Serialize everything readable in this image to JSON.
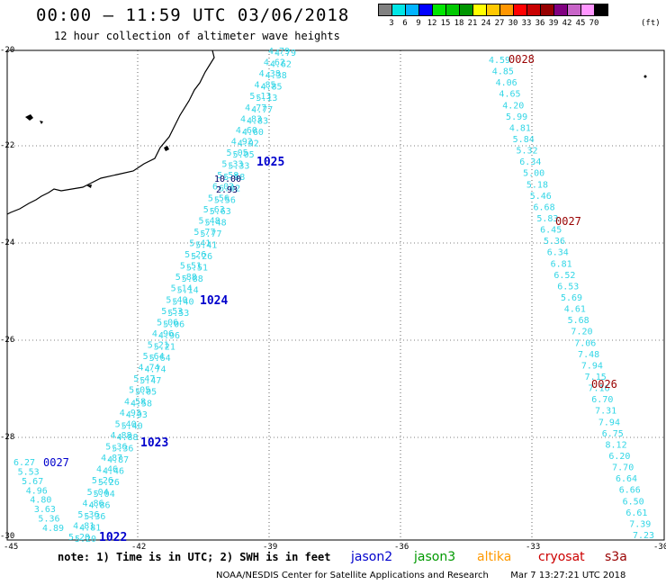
{
  "header": {
    "title": "00:00 – 11:59 UTC 03/06/2018",
    "subtitle": "12 hour collection of altimeter wave heights"
  },
  "color_scale": {
    "colors": [
      "#808080",
      "#00e6e6",
      "#00b4ff",
      "#0000ff",
      "#00e600",
      "#00c800",
      "#009600",
      "#ffff00",
      "#ffc800",
      "#ff9600",
      "#ff0000",
      "#c80000",
      "#960000",
      "#800080",
      "#c864c8",
      "#ff96ff",
      "#000000"
    ],
    "labels": [
      "3",
      "6",
      "9",
      "12",
      "15",
      "18",
      "21",
      "24",
      "27",
      "30",
      "33",
      "36",
      "39",
      "42",
      "45",
      "70"
    ],
    "unit": "(ft)"
  },
  "map": {
    "lat_labels": [
      "-20",
      "-22",
      "-24",
      "-26",
      "-28",
      "-30"
    ],
    "lon_labels": [
      "-45",
      "-42",
      "-39",
      "-36",
      "-33",
      "-30"
    ],
    "labels": [
      {
        "text": "1025",
        "color": "#0000cc"
      },
      {
        "text": "1024",
        "color": "#0000cc"
      },
      {
        "text": "1023",
        "color": "#0000cc"
      },
      {
        "text": "1022",
        "color": "#0000cc"
      },
      {
        "text": "0027",
        "color": "#0000cc"
      },
      {
        "text": "0028",
        "color": "#990000"
      },
      {
        "text": "0027",
        "color": "#990000"
      },
      {
        "text": "0026",
        "color": "#990000"
      },
      {
        "text": "10.00",
        "color": "#000066"
      },
      {
        "text": "2.93",
        "color": "#000066"
      }
    ],
    "track_east_values": [
      "4.59",
      "4.85",
      "4.06",
      "4.65",
      "4.20",
      "5.99",
      "4.81",
      "5.84",
      "5.32",
      "6.34",
      "5.00",
      "5.18",
      "5.46",
      "6.68",
      "5.83",
      "6.45",
      "5.36",
      "6.34",
      "6.81",
      "6.52",
      "6.53",
      "5.69",
      "4.61",
      "5.68",
      "7.20",
      "7.06",
      "7.48",
      "7.94",
      "7.15",
      "7.16",
      "6.70",
      "7.31",
      "7.94",
      "6.75",
      "8.12",
      "6.20",
      "7.70",
      "6.64",
      "6.66",
      "6.50",
      "6.61",
      "7.39",
      "7.23"
    ],
    "track_west_values": [
      "6.27",
      "5.53",
      "5.67",
      "4.96",
      "4.80",
      "3.63",
      "5.36",
      "4.89"
    ],
    "track_main_values": [
      "4.79",
      "4.62",
      "4.38",
      "4.85",
      "5.13",
      "4.77",
      "4.83",
      "4.60",
      "4.92",
      "5.05",
      "5.33",
      "5.58",
      "6.02",
      "5.56",
      "5.63",
      "5.48",
      "5.77",
      "5.41",
      "5.26",
      "5.51",
      "5.88",
      "5.14",
      "5.40",
      "5.53",
      "5.06",
      "4.96",
      "5.21",
      "5.64",
      "4.74",
      "5.47",
      "5.05",
      "4.58",
      "4.93",
      "5.40",
      "4.88",
      "5.36",
      "4.87",
      "4.46",
      "5.26",
      "5.04",
      "4.86",
      "5.36",
      "4.81",
      "5.20"
    ]
  },
  "legend": {
    "note": "note: 1) Time is in UTC; 2) SWH is in feet",
    "satellites": [
      {
        "name": "jason2",
        "color": "#0000cc"
      },
      {
        "name": "jason3",
        "color": "#009900"
      },
      {
        "name": "altika",
        "color": "#ff9900"
      },
      {
        "name": "cryosat",
        "color": "#cc0000"
      },
      {
        "name": "s3a",
        "color": "#990000"
      }
    ]
  },
  "footer": {
    "text": "NOAA/NESDIS Center for Satellite Applications and Research",
    "timestamp": "Mar  7 13:27:21 UTC 2018"
  }
}
